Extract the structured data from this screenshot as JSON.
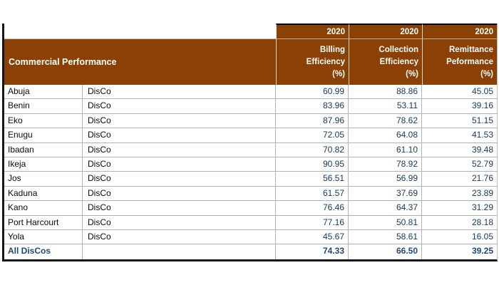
{
  "colors": {
    "header_bg": "#8C4104",
    "header_text": "#FFFFFF",
    "value_text": "#17375E",
    "total_text": "#1F497D",
    "row_border": "#B3B3B3",
    "frame_black": "#161616"
  },
  "chart_data": {
    "type": "table",
    "title": "Commercial Performance",
    "year_header": {
      "billing": "2020",
      "collection": "2020",
      "remittance": "2020"
    },
    "column_headers": {
      "billing": "Billing\nEfficiency\n(%)",
      "collection": "Collection\nEfficiency\n(%)",
      "remittance": "Remittance\nPeformance\n(%)"
    },
    "rows": [
      {
        "name": "Abuja",
        "type": "DisCo",
        "billing": "60.99",
        "collection": "88.86",
        "remittance": "45.05"
      },
      {
        "name": "Benin",
        "type": "DisCo",
        "billing": "83.96",
        "collection": "53.11",
        "remittance": "39.16"
      },
      {
        "name": "Eko",
        "type": "DisCo",
        "billing": "87.96",
        "collection": "78.62",
        "remittance": "51.15"
      },
      {
        "name": "Enugu",
        "type": "DisCo",
        "billing": "72.05",
        "collection": "64.08",
        "remittance": "41.53"
      },
      {
        "name": "Ibadan",
        "type": "DisCo",
        "billing": "70.82",
        "collection": "61.10",
        "remittance": "39.48"
      },
      {
        "name": "Ikeja",
        "type": "DisCo",
        "billing": "90.95",
        "collection": "78.92",
        "remittance": "52.79"
      },
      {
        "name": "Jos",
        "type": "DisCo",
        "billing": "56.51",
        "collection": "56.99",
        "remittance": "21.76"
      },
      {
        "name": "Kaduna",
        "type": "DisCo",
        "billing": "61.57",
        "collection": "37.69",
        "remittance": "23.89"
      },
      {
        "name": "Kano",
        "type": "DisCo",
        "billing": "76.46",
        "collection": "64.37",
        "remittance": "31.29"
      },
      {
        "name": "Port Harcourt",
        "type": "DisCo",
        "billing": "77.16",
        "collection": "50.81",
        "remittance": "28.18"
      },
      {
        "name": "Yola",
        "type": "DisCo",
        "billing": "45.67",
        "collection": "58.61",
        "remittance": "16.05"
      }
    ],
    "total_row": {
      "name": "All DisCos",
      "type": "",
      "billing": "74.33",
      "collection": "66.50",
      "remittance": "39.25"
    }
  }
}
